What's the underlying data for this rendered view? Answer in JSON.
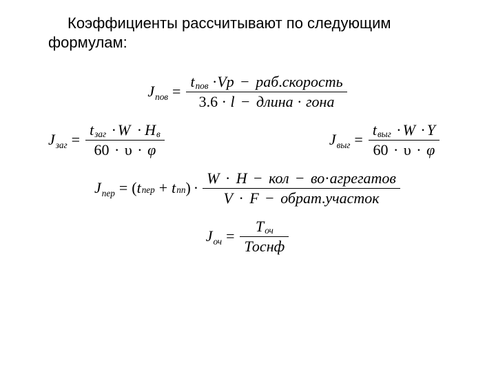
{
  "colors": {
    "text": "#000000",
    "background": "#ffffff"
  },
  "typography": {
    "body_font": "Arial",
    "math_font": "Times New Roman",
    "body_size_pt": 17,
    "math_size_pt": 17
  },
  "intro": "Коэффициенты рассчитывают по следующим формулам:",
  "eq1": {
    "J": "J",
    "J_sub": "пов",
    "eq": "=",
    "t": "t",
    "t_sub": "пов",
    "dot": "·",
    "V": "V",
    "p": "р",
    "minus": "−",
    "phrase1": "раб",
    "phrase1dot": ".",
    "phrase2": "скорость",
    "const": "3.6",
    "l": "l",
    "minus2": "−",
    "phrase3": "длина",
    "phrase4": "гона"
  },
  "eq2": {
    "J": "J",
    "J_sub": "заг",
    "eq": "=",
    "t": "t",
    "t_sub": "заг",
    "dot": "·",
    "W": "W",
    "H": "H",
    "H_sub": "в",
    "const": "60",
    "nu": "υ",
    "phi": "φ"
  },
  "eq3": {
    "J": "J",
    "J_sub": "выг",
    "eq": "=",
    "t": "t",
    "t_sub": "выг",
    "dot": "·",
    "W": "W",
    "Y": "Y",
    "const": "60",
    "nu": "υ",
    "phi": "φ"
  },
  "eq4": {
    "J": "J",
    "J_sub": "пер",
    "eq": "=",
    "t1": "t",
    "t1_sub": "пер",
    "plus": "+",
    "t2": "t",
    "t2_sub": "пп",
    "dot": "·",
    "W": "W",
    "H": "H",
    "minus": "−",
    "phrase1": "кол",
    "phrase2": "во",
    "phrase3": "агрегатов",
    "V": "V",
    "F": "F",
    "minus2": "−",
    "phrase4": "обрат",
    "phrase4dot": ".",
    "phrase5": "участок"
  },
  "eq5": {
    "J": "J",
    "J_sub": "оч",
    "eq": "=",
    "T": "T",
    "T_sub": "оч",
    "den": "Тоснф"
  }
}
